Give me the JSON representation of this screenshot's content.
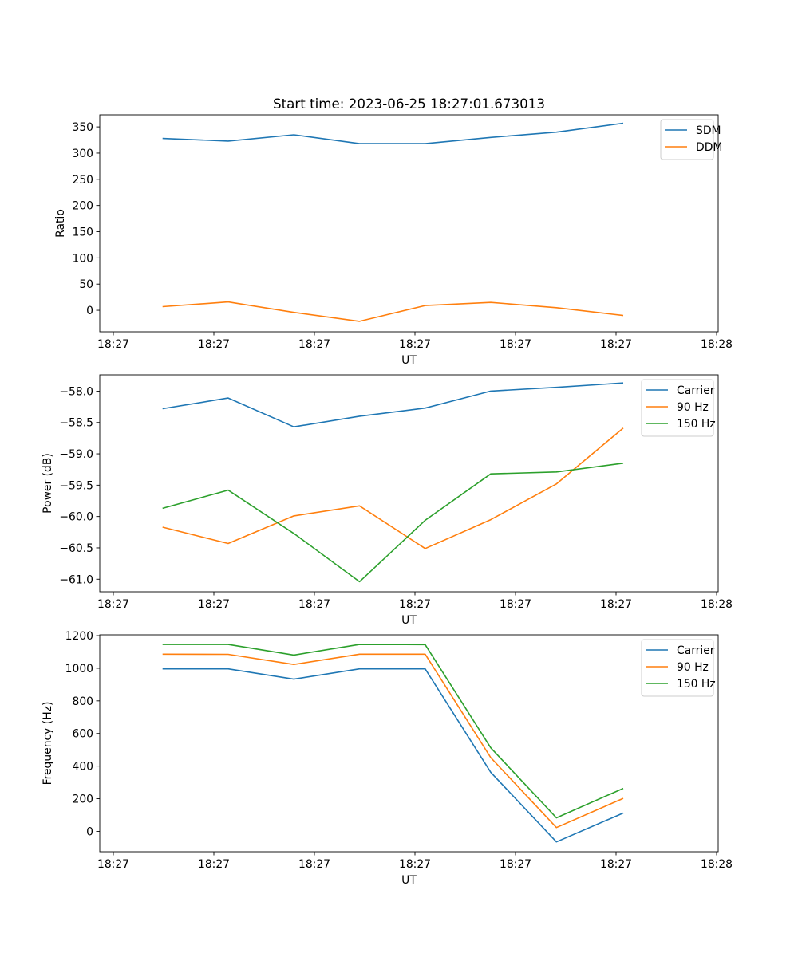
{
  "title": "Start time: 2023-06-25 18:27:01.673013",
  "chart_data": [
    {
      "type": "line",
      "title": "Start time: 2023-06-25 18:27:01.673013",
      "xlabel": "UT",
      "ylabel": "Ratio",
      "x_tick_labels": [
        "18:27",
        "18:27",
        "18:27",
        "18:27",
        "18:27",
        "18:27",
        "18:28"
      ],
      "y_ticks": [
        0,
        50,
        100,
        150,
        200,
        250,
        300,
        350
      ],
      "ylim": [
        -41,
        373
      ],
      "grid": false,
      "legend_position": "top-right",
      "series": [
        {
          "name": "SDM",
          "color": "#1f77b4",
          "values": [
            328,
            323,
            335,
            318,
            318,
            330,
            340,
            357
          ]
        },
        {
          "name": "DDM",
          "color": "#ff7f0e",
          "values": [
            7,
            16,
            -4,
            -21,
            9,
            15,
            5,
            -10
          ]
        }
      ]
    },
    {
      "type": "line",
      "title": "",
      "xlabel": "UT",
      "ylabel": "Power (dB)",
      "x_tick_labels": [
        "18:27",
        "18:27",
        "18:27",
        "18:27",
        "18:27",
        "18:27",
        "18:28"
      ],
      "y_ticks": [
        -58.0,
        -58.5,
        -59.0,
        -59.5,
        -60.0,
        -60.5,
        -61.0
      ],
      "ylim": [
        -61.2,
        -57.74
      ],
      "grid": false,
      "legend_position": "top-right",
      "series": [
        {
          "name": "Carrier",
          "color": "#1f77b4",
          "values": [
            -58.28,
            -58.11,
            -58.57,
            -58.4,
            -58.27,
            -58.0,
            -57.94,
            -57.87
          ]
        },
        {
          "name": "90 Hz",
          "color": "#ff7f0e",
          "values": [
            -60.17,
            -60.43,
            -59.99,
            -59.83,
            -60.51,
            -60.05,
            -59.48,
            -58.59
          ]
        },
        {
          "name": "150 Hz",
          "color": "#2ca02c",
          "values": [
            -59.87,
            -59.58,
            -60.27,
            -61.04,
            -60.06,
            -59.32,
            -59.29,
            -59.15
          ]
        }
      ]
    },
    {
      "type": "line",
      "title": "",
      "xlabel": "UT",
      "ylabel": "Frequency (Hz)",
      "x_tick_labels": [
        "18:27",
        "18:27",
        "18:27",
        "18:27",
        "18:27",
        "18:27",
        "18:28"
      ],
      "y_ticks": [
        0,
        200,
        400,
        600,
        800,
        1000,
        1200
      ],
      "ylim": [
        -125,
        1205
      ],
      "grid": false,
      "legend_position": "top-right",
      "series": [
        {
          "name": "Carrier",
          "color": "#1f77b4",
          "values": [
            996,
            996,
            933,
            996,
            996,
            362,
            -65,
            112
          ]
        },
        {
          "name": "90 Hz",
          "color": "#ff7f0e",
          "values": [
            1086,
            1085,
            1023,
            1086,
            1086,
            452,
            23,
            202
          ]
        },
        {
          "name": "150 Hz",
          "color": "#2ca02c",
          "values": [
            1146,
            1146,
            1081,
            1146,
            1145,
            512,
            83,
            263
          ]
        }
      ]
    }
  ]
}
